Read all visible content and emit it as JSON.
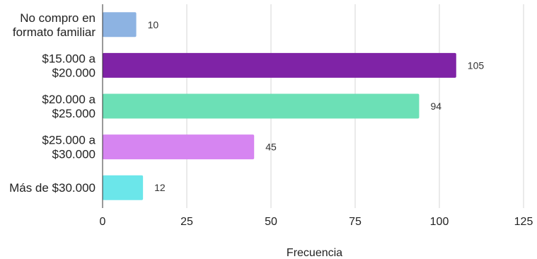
{
  "chart_data": {
    "type": "bar",
    "orientation": "horizontal",
    "title": "",
    "xlabel": "Frecuencia",
    "ylabel": "",
    "categories": [
      [
        "No compro en",
        "formato familiar"
      ],
      [
        "$15.000 a",
        "$20.000"
      ],
      [
        "$20.000 a",
        "$25.000"
      ],
      [
        "$25.000 a",
        "$30.000"
      ],
      [
        "Más de $30.000"
      ]
    ],
    "values": [
      10,
      105,
      94,
      45,
      12
    ],
    "colors": [
      "#8db3e2",
      "#7f23a6",
      "#6ce0b6",
      "#d685f1",
      "#6be6ea"
    ],
    "xlim": [
      0,
      125
    ],
    "xticks": [
      0,
      25,
      50,
      75,
      100,
      125
    ],
    "grid": true,
    "legend": "none"
  }
}
